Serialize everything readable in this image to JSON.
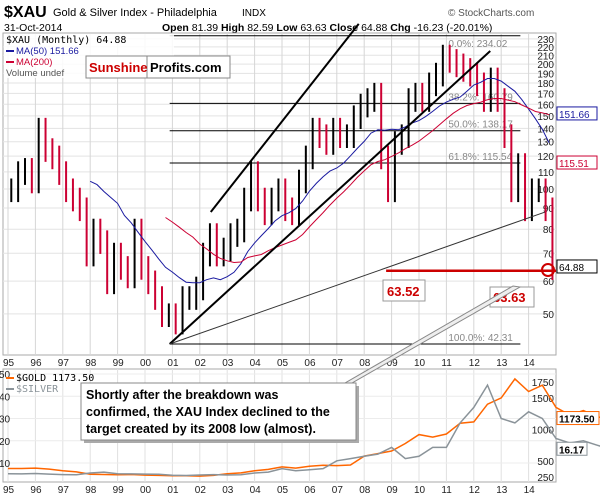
{
  "header": {
    "symbol": "$XAU",
    "name": "Gold & Silver Index - Philadelphia",
    "exchange": "INDX",
    "date": "31-Oct-2014",
    "open_label": "Open",
    "open": "81.39",
    "high_label": "High",
    "high": "82.59",
    "low_label": "Low",
    "low": "63.63",
    "close_label": "Close",
    "close": "64.88",
    "chg_label": "Chg",
    "chg": "-16.23 (-20.01%)",
    "credit": "© StockCharts.com"
  },
  "legend": {
    "xau": "$XAU (Monthly) 64.88",
    "ma50": "MA(50) 151.66",
    "ma200": "MA(200)",
    "volume": "Volume undef"
  },
  "logo": {
    "part1": "Sunshine",
    "part2": "Profits.com"
  },
  "colors": {
    "up": "#000000",
    "down": "#cc0033",
    "ma50": "#1a1aa0",
    "ma200": "#cc0033",
    "gold": "#ff6600",
    "silver": "#8a9399",
    "annot": "#cc0000"
  },
  "annotations": {
    "low2008": "63.52",
    "low2014": "63.63",
    "callout": [
      "Shortly after the breakdown was",
      "confirmed, the XAU Index declined to the",
      "target created by its 2008 low (almost)."
    ]
  },
  "chart_data": [
    {
      "type": "bar",
      "title": "$XAU (Monthly)",
      "scale": "log",
      "ylim": [
        42,
        240
      ],
      "y_ticks": [
        50,
        60,
        70,
        80,
        90,
        100,
        110,
        120,
        130,
        140,
        150,
        160,
        170,
        180,
        190,
        200,
        210,
        220,
        230
      ],
      "x_ticks": [
        "95",
        "96",
        "97",
        "98",
        "99",
        "00",
        "01",
        "02",
        "03",
        "04",
        "05",
        "06",
        "07",
        "08",
        "09",
        "10",
        "11",
        "12",
        "13",
        "14"
      ],
      "x_start": 1995,
      "x_step_years": 0.25,
      "closes": [
        100,
        110,
        112,
        105,
        140,
        125,
        120,
        110,
        100,
        95,
        90,
        70,
        80,
        75,
        60,
        70,
        65,
        62,
        80,
        65,
        60,
        55,
        50,
        50,
        48,
        55,
        55,
        58,
        70,
        78,
        70,
        72,
        78,
        80,
        95,
        110,
        95,
        88,
        95,
        100,
        90,
        88,
        105,
        120,
        140,
        135,
        130,
        140,
        135,
        135,
        150,
        160,
        165,
        170,
        120,
        100,
        130,
        135,
        165,
        170,
        165,
        180,
        190,
        210,
        205,
        200,
        195,
        190,
        180,
        165,
        185,
        165,
        135,
        100,
        115,
        90,
        100,
        100,
        90,
        64.88
      ],
      "last_labels": {
        "close": "64.88",
        "ma50": "151.66",
        "ma200": "115.51"
      },
      "fib_levels": [
        {
          "label": "0.0%: 234.02",
          "value": 234.02
        },
        {
          "label": "38.2%: 160.79",
          "value": 160.79
        },
        {
          "label": "50.0%: 138.17",
          "value": 138.17
        },
        {
          "label": "61.8%: 115.54",
          "value": 115.54
        },
        {
          "label": "100.0%: 42.31",
          "value": 42.31
        }
      ],
      "support": 63.52
    },
    {
      "type": "line",
      "ylim_left": [
        0,
        50
      ],
      "ylim_right": [
        250,
        1750
      ],
      "y_ticks_left": [
        10,
        20,
        30,
        40,
        50
      ],
      "y_ticks_right": [
        250,
        500,
        1000,
        1500,
        1750
      ],
      "x_start": 1995,
      "x_step_years": 0.5,
      "series": [
        {
          "name": "$GOLD",
          "label": "$GOLD 1173.50",
          "last": "1173.50",
          "axis": "right",
          "values": [
            385,
            385,
            390,
            375,
            350,
            330,
            295,
            290,
            285,
            290,
            280,
            275,
            270,
            270,
            265,
            275,
            300,
            315,
            350,
            370,
            410,
            390,
            420,
            435,
            430,
            440,
            580,
            620,
            660,
            780,
            920,
            880,
            930,
            1100,
            1120,
            1400,
            1500,
            1800,
            1600,
            1700,
            1350,
            1230,
            1300,
            1200,
            1173.5
          ]
        },
        {
          "name": "$SILVER",
          "label": "$SILVER",
          "last": "16.17",
          "axis": "left",
          "values": [
            5.2,
            5.1,
            5.3,
            5.0,
            4.8,
            4.7,
            5.5,
            5.9,
            5.2,
            5.1,
            5.0,
            4.9,
            4.5,
            4.4,
            4.6,
            4.8,
            4.6,
            4.7,
            5.5,
            5.9,
            7.5,
            6.5,
            7.0,
            7.5,
            11,
            12,
            13,
            14,
            17,
            12,
            13,
            17,
            17,
            28,
            35,
            45,
            30,
            28,
            33,
            30,
            21,
            19,
            20,
            18,
            16.17
          ]
        }
      ]
    }
  ]
}
